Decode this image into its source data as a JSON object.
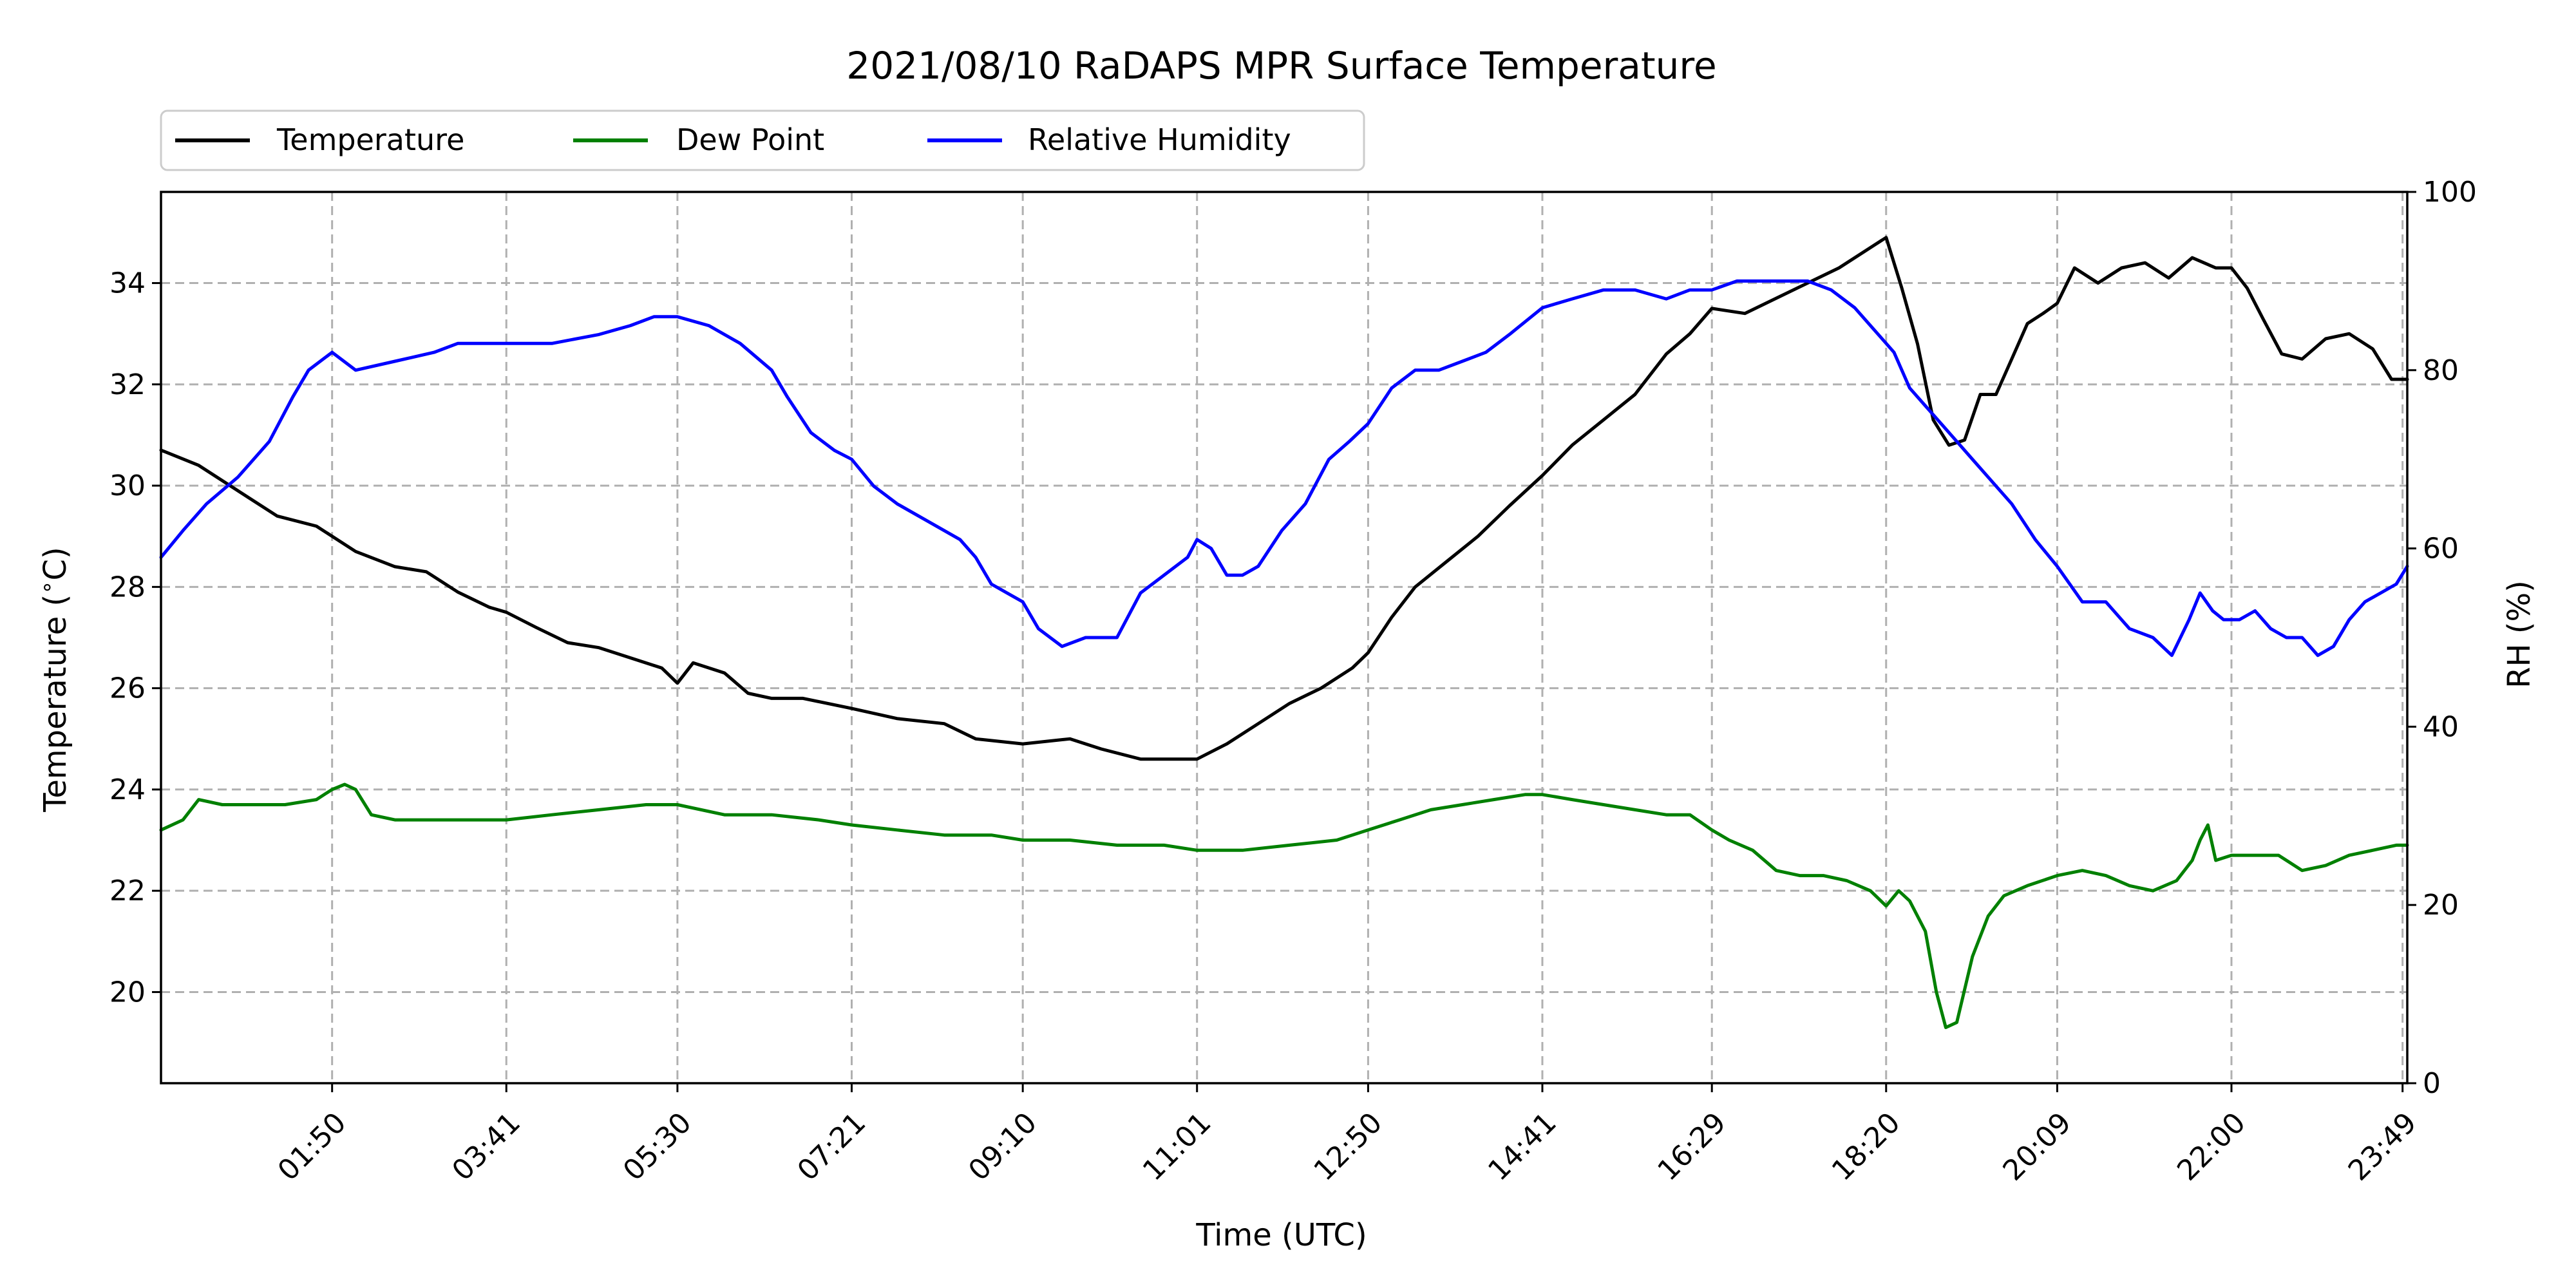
{
  "chart_data": {
    "type": "line",
    "title": "2021/08/10 RaDAPS MPR Surface Temperature",
    "xlabel": "Time (UTC)",
    "ylabel": "Temperature ($^\\circ$C)",
    "y2label": "RH (%)",
    "x_tick_labels": [
      "01:50",
      "03:41",
      "05:30",
      "07:21",
      "09:10",
      "11:01",
      "12:50",
      "14:41",
      "16:29",
      "18:20",
      "20:09",
      "22:00",
      "23:49"
    ],
    "x_tick_values": [
      110,
      221,
      330,
      441,
      550,
      661,
      770,
      881,
      989,
      1100,
      1209,
      1320,
      1429
    ],
    "xlim": [
      1,
      1432
    ],
    "ylim": [
      18.2,
      35.8
    ],
    "y_ticks": [
      20,
      22,
      24,
      26,
      28,
      30,
      32,
      34
    ],
    "y2lim": [
      0,
      100
    ],
    "y2_ticks": [
      0,
      20,
      40,
      60,
      80,
      100
    ],
    "grid": true,
    "legend_placement": "above-top-left",
    "series": [
      {
        "name": "Temperature",
        "axis": "left",
        "color": "#000000",
        "points": [
          [
            1,
            30.7
          ],
          [
            25,
            30.4
          ],
          [
            50,
            29.9
          ],
          [
            75,
            29.4
          ],
          [
            100,
            29.2
          ],
          [
            125,
            28.7
          ],
          [
            150,
            28.4
          ],
          [
            170,
            28.3
          ],
          [
            190,
            27.9
          ],
          [
            210,
            27.6
          ],
          [
            221,
            27.5
          ],
          [
            240,
            27.2
          ],
          [
            260,
            26.9
          ],
          [
            280,
            26.8
          ],
          [
            300,
            26.6
          ],
          [
            320,
            26.4
          ],
          [
            330,
            26.1
          ],
          [
            340,
            26.5
          ],
          [
            360,
            26.3
          ],
          [
            375,
            25.9
          ],
          [
            390,
            25.8
          ],
          [
            410,
            25.8
          ],
          [
            441,
            25.6
          ],
          [
            470,
            25.4
          ],
          [
            500,
            25.3
          ],
          [
            520,
            25.0
          ],
          [
            550,
            24.9
          ],
          [
            580,
            25.0
          ],
          [
            600,
            24.8
          ],
          [
            625,
            24.6
          ],
          [
            661,
            24.6
          ],
          [
            680,
            24.9
          ],
          [
            700,
            25.3
          ],
          [
            720,
            25.7
          ],
          [
            740,
            26.0
          ],
          [
            760,
            26.4
          ],
          [
            770,
            26.7
          ],
          [
            785,
            27.4
          ],
          [
            800,
            28.0
          ],
          [
            820,
            28.5
          ],
          [
            840,
            29.0
          ],
          [
            860,
            29.6
          ],
          [
            881,
            30.2
          ],
          [
            900,
            30.8
          ],
          [
            920,
            31.3
          ],
          [
            940,
            31.8
          ],
          [
            960,
            32.6
          ],
          [
            975,
            33.0
          ],
          [
            989,
            33.5
          ],
          [
            1010,
            33.4
          ],
          [
            1030,
            33.7
          ],
          [
            1050,
            34.0
          ],
          [
            1070,
            34.3
          ],
          [
            1085,
            34.6
          ],
          [
            1095,
            34.8
          ],
          [
            1100,
            34.9
          ],
          [
            1110,
            33.9
          ],
          [
            1120,
            32.8
          ],
          [
            1130,
            31.3
          ],
          [
            1140,
            30.8
          ],
          [
            1150,
            30.9
          ],
          [
            1160,
            31.8
          ],
          [
            1170,
            31.8
          ],
          [
            1180,
            32.5
          ],
          [
            1190,
            33.2
          ],
          [
            1200,
            33.4
          ],
          [
            1209,
            33.6
          ],
          [
            1220,
            34.3
          ],
          [
            1235,
            34.0
          ],
          [
            1250,
            34.3
          ],
          [
            1265,
            34.4
          ],
          [
            1280,
            34.1
          ],
          [
            1295,
            34.5
          ],
          [
            1310,
            34.3
          ],
          [
            1320,
            34.3
          ],
          [
            1330,
            33.9
          ],
          [
            1340,
            33.3
          ],
          [
            1352,
            32.6
          ],
          [
            1365,
            32.5
          ],
          [
            1380,
            32.9
          ],
          [
            1395,
            33.0
          ],
          [
            1410,
            32.7
          ],
          [
            1422,
            32.1
          ],
          [
            1432,
            32.1
          ]
        ]
      },
      {
        "name": "Dew Point",
        "axis": "left",
        "color": "#008000",
        "points": [
          [
            1,
            23.2
          ],
          [
            15,
            23.4
          ],
          [
            25,
            23.8
          ],
          [
            40,
            23.7
          ],
          [
            60,
            23.7
          ],
          [
            80,
            23.7
          ],
          [
            100,
            23.8
          ],
          [
            110,
            24.0
          ],
          [
            118,
            24.1
          ],
          [
            125,
            24.0
          ],
          [
            135,
            23.5
          ],
          [
            150,
            23.4
          ],
          [
            170,
            23.4
          ],
          [
            200,
            23.4
          ],
          [
            221,
            23.4
          ],
          [
            250,
            23.5
          ],
          [
            280,
            23.6
          ],
          [
            310,
            23.7
          ],
          [
            330,
            23.7
          ],
          [
            360,
            23.5
          ],
          [
            390,
            23.5
          ],
          [
            420,
            23.4
          ],
          [
            441,
            23.3
          ],
          [
            470,
            23.2
          ],
          [
            500,
            23.1
          ],
          [
            530,
            23.1
          ],
          [
            550,
            23.0
          ],
          [
            580,
            23.0
          ],
          [
            610,
            22.9
          ],
          [
            640,
            22.9
          ],
          [
            661,
            22.8
          ],
          [
            690,
            22.8
          ],
          [
            720,
            22.9
          ],
          [
            750,
            23.0
          ],
          [
            770,
            23.2
          ],
          [
            790,
            23.4
          ],
          [
            810,
            23.6
          ],
          [
            830,
            23.7
          ],
          [
            850,
            23.8
          ],
          [
            870,
            23.9
          ],
          [
            881,
            23.9
          ],
          [
            900,
            23.8
          ],
          [
            920,
            23.7
          ],
          [
            940,
            23.6
          ],
          [
            960,
            23.5
          ],
          [
            975,
            23.5
          ],
          [
            989,
            23.2
          ],
          [
            1000,
            23.0
          ],
          [
            1015,
            22.8
          ],
          [
            1030,
            22.4
          ],
          [
            1045,
            22.3
          ],
          [
            1060,
            22.3
          ],
          [
            1075,
            22.2
          ],
          [
            1090,
            22.0
          ],
          [
            1100,
            21.7
          ],
          [
            1108,
            22.0
          ],
          [
            1115,
            21.8
          ],
          [
            1125,
            21.2
          ],
          [
            1132,
            20.0
          ],
          [
            1138,
            19.3
          ],
          [
            1145,
            19.4
          ],
          [
            1155,
            20.7
          ],
          [
            1165,
            21.5
          ],
          [
            1175,
            21.9
          ],
          [
            1190,
            22.1
          ],
          [
            1209,
            22.3
          ],
          [
            1225,
            22.4
          ],
          [
            1240,
            22.3
          ],
          [
            1255,
            22.1
          ],
          [
            1270,
            22.0
          ],
          [
            1285,
            22.2
          ],
          [
            1295,
            22.6
          ],
          [
            1300,
            23.0
          ],
          [
            1305,
            23.3
          ],
          [
            1310,
            22.6
          ],
          [
            1320,
            22.7
          ],
          [
            1335,
            22.7
          ],
          [
            1350,
            22.7
          ],
          [
            1365,
            22.4
          ],
          [
            1380,
            22.5
          ],
          [
            1395,
            22.7
          ],
          [
            1410,
            22.8
          ],
          [
            1425,
            22.9
          ],
          [
            1432,
            22.9
          ]
        ]
      },
      {
        "name": "Relative Humidity",
        "axis": "right",
        "color": "#0000ff",
        "points": [
          [
            1,
            59
          ],
          [
            15,
            62
          ],
          [
            30,
            65
          ],
          [
            50,
            68
          ],
          [
            70,
            72
          ],
          [
            85,
            77
          ],
          [
            95,
            80
          ],
          [
            110,
            82
          ],
          [
            125,
            80
          ],
          [
            150,
            81
          ],
          [
            175,
            82
          ],
          [
            190,
            83
          ],
          [
            210,
            83
          ],
          [
            221,
            83
          ],
          [
            250,
            83
          ],
          [
            280,
            84
          ],
          [
            300,
            85
          ],
          [
            315,
            86
          ],
          [
            330,
            86
          ],
          [
            350,
            85
          ],
          [
            370,
            83
          ],
          [
            390,
            80
          ],
          [
            400,
            77
          ],
          [
            415,
            73
          ],
          [
            430,
            71
          ],
          [
            441,
            70
          ],
          [
            455,
            67
          ],
          [
            470,
            65
          ],
          [
            490,
            63
          ],
          [
            510,
            61
          ],
          [
            520,
            59
          ],
          [
            530,
            56
          ],
          [
            540,
            55
          ],
          [
            550,
            54
          ],
          [
            560,
            51
          ],
          [
            575,
            49
          ],
          [
            590,
            50
          ],
          [
            610,
            50
          ],
          [
            625,
            55
          ],
          [
            640,
            57
          ],
          [
            655,
            59
          ],
          [
            661,
            61
          ],
          [
            670,
            60
          ],
          [
            680,
            57
          ],
          [
            690,
            57
          ],
          [
            700,
            58
          ],
          [
            715,
            62
          ],
          [
            730,
            65
          ],
          [
            745,
            70
          ],
          [
            758,
            72
          ],
          [
            770,
            74
          ],
          [
            785,
            78
          ],
          [
            800,
            80
          ],
          [
            815,
            80
          ],
          [
            830,
            81
          ],
          [
            845,
            82
          ],
          [
            860,
            84
          ],
          [
            881,
            87
          ],
          [
            900,
            88
          ],
          [
            920,
            89
          ],
          [
            940,
            89
          ],
          [
            960,
            88
          ],
          [
            975,
            89
          ],
          [
            989,
            89
          ],
          [
            1005,
            90
          ],
          [
            1020,
            90
          ],
          [
            1035,
            90
          ],
          [
            1050,
            90
          ],
          [
            1065,
            89
          ],
          [
            1080,
            87
          ],
          [
            1095,
            84
          ],
          [
            1105,
            82
          ],
          [
            1115,
            78
          ],
          [
            1125,
            76
          ],
          [
            1135,
            74
          ],
          [
            1145,
            72
          ],
          [
            1155,
            70
          ],
          [
            1165,
            68
          ],
          [
            1180,
            65
          ],
          [
            1195,
            61
          ],
          [
            1209,
            58
          ],
          [
            1225,
            54
          ],
          [
            1240,
            54
          ],
          [
            1255,
            51
          ],
          [
            1270,
            50
          ],
          [
            1282,
            48
          ],
          [
            1293,
            52
          ],
          [
            1300,
            55
          ],
          [
            1308,
            53
          ],
          [
            1315,
            52
          ],
          [
            1325,
            52
          ],
          [
            1335,
            53
          ],
          [
            1345,
            51
          ],
          [
            1355,
            50
          ],
          [
            1365,
            50
          ],
          [
            1375,
            48
          ],
          [
            1385,
            49
          ],
          [
            1395,
            52
          ],
          [
            1405,
            54
          ],
          [
            1415,
            55
          ],
          [
            1425,
            56
          ],
          [
            1432,
            58
          ]
        ]
      }
    ]
  }
}
